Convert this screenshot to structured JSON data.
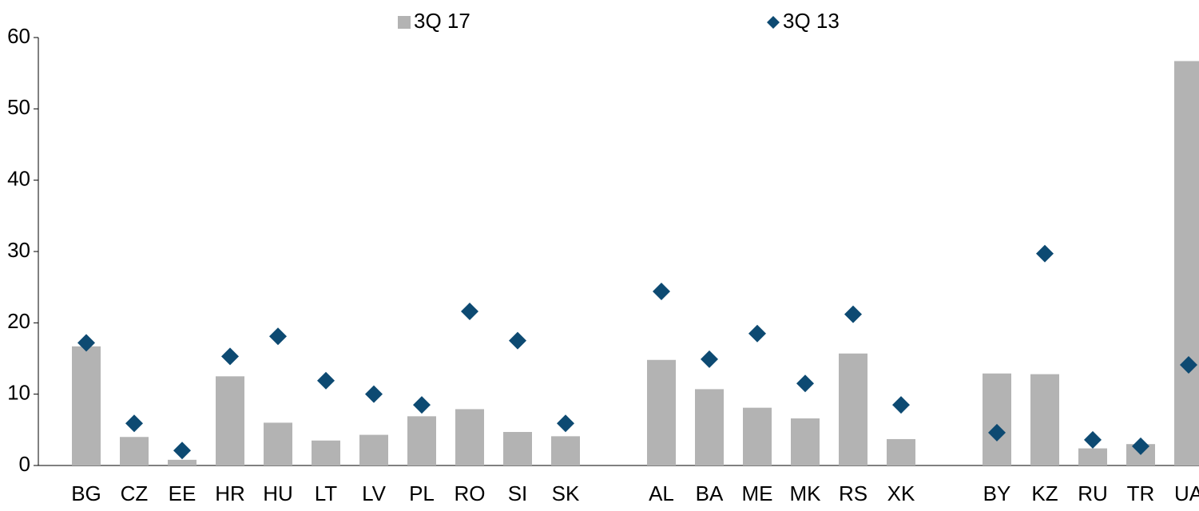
{
  "chart_data": {
    "type": "bar",
    "categories": [
      "BG",
      "CZ",
      "EE",
      "HR",
      "HU",
      "LT",
      "LV",
      "PL",
      "RO",
      "SI",
      "SK",
      null,
      "AL",
      "BA",
      "ME",
      "MK",
      "RS",
      "XK",
      null,
      "BY",
      "KZ",
      "RU",
      "TR",
      "UA"
    ],
    "series": [
      {
        "name": "3Q 17",
        "type": "bar",
        "color": "#b3b3b3",
        "values": [
          16.7,
          4.0,
          0.8,
          12.5,
          6.0,
          3.5,
          4.3,
          6.9,
          7.9,
          4.7,
          4.1,
          null,
          14.8,
          10.7,
          8.1,
          6.6,
          15.7,
          3.7,
          null,
          12.9,
          12.8,
          2.4,
          3.0,
          56.7
        ]
      },
      {
        "name": "3Q 13",
        "type": "scatter",
        "color": "#0d4a72",
        "values": [
          17.2,
          5.9,
          2.1,
          15.3,
          18.1,
          11.9,
          10.0,
          8.5,
          21.6,
          17.5,
          5.9,
          null,
          24.4,
          14.9,
          18.5,
          11.5,
          21.2,
          8.5,
          null,
          4.6,
          29.7,
          3.6,
          2.7,
          14.1
        ]
      }
    ],
    "ylim": [
      0,
      60
    ],
    "yticks": [
      0,
      10,
      20,
      30,
      40,
      50,
      60
    ],
    "legend": "top"
  }
}
